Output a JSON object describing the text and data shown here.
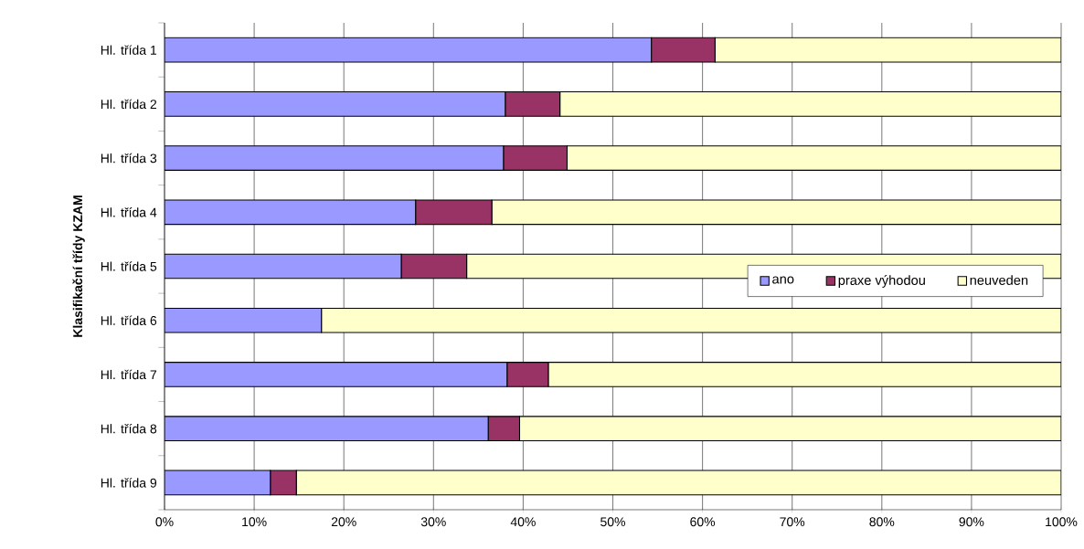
{
  "chart_data": {
    "type": "bar",
    "orientation": "horizontal",
    "stacked": true,
    "ylabel": "Klasifikační třídy KZAM",
    "categories": [
      "Hl. třída 1",
      "Hl. třída 2",
      "Hl. třída 3",
      "Hl. třída 4",
      "Hl. třída 5",
      "Hl. třída 6",
      "Hl. třída 7",
      "Hl. třída 8",
      "Hl. třída 9"
    ],
    "series": [
      {
        "name": "ano",
        "color": "#9999ff",
        "values": [
          54.3,
          38.0,
          37.8,
          28.0,
          26.4,
          17.5,
          38.2,
          36.1,
          11.8
        ]
      },
      {
        "name": "praxe výhodou",
        "color": "#993366",
        "values": [
          7.1,
          6.1,
          7.1,
          8.5,
          7.3,
          0,
          4.6,
          3.5,
          2.9
        ]
      },
      {
        "name": "neuveden",
        "color": "#ffffcc",
        "values": [
          38.6,
          55.9,
          55.1,
          63.5,
          66.3,
          82.5,
          57.2,
          60.4,
          85.3
        ]
      }
    ],
    "xlim": [
      0,
      100
    ],
    "xticks": [
      {
        "value": 0,
        "label": "0%"
      },
      {
        "value": 10,
        "label": "10%"
      },
      {
        "value": 20,
        "label": "20%"
      },
      {
        "value": 30,
        "label": "30%"
      },
      {
        "value": 40,
        "label": "40%"
      },
      {
        "value": 50,
        "label": "50%"
      },
      {
        "value": 60,
        "label": "60%"
      },
      {
        "value": 70,
        "label": "70%"
      },
      {
        "value": 80,
        "label": "80%"
      },
      {
        "value": 90,
        "label": "90%"
      },
      {
        "value": 100,
        "label": "100%"
      }
    ],
    "grid": "x",
    "legend": "right"
  }
}
